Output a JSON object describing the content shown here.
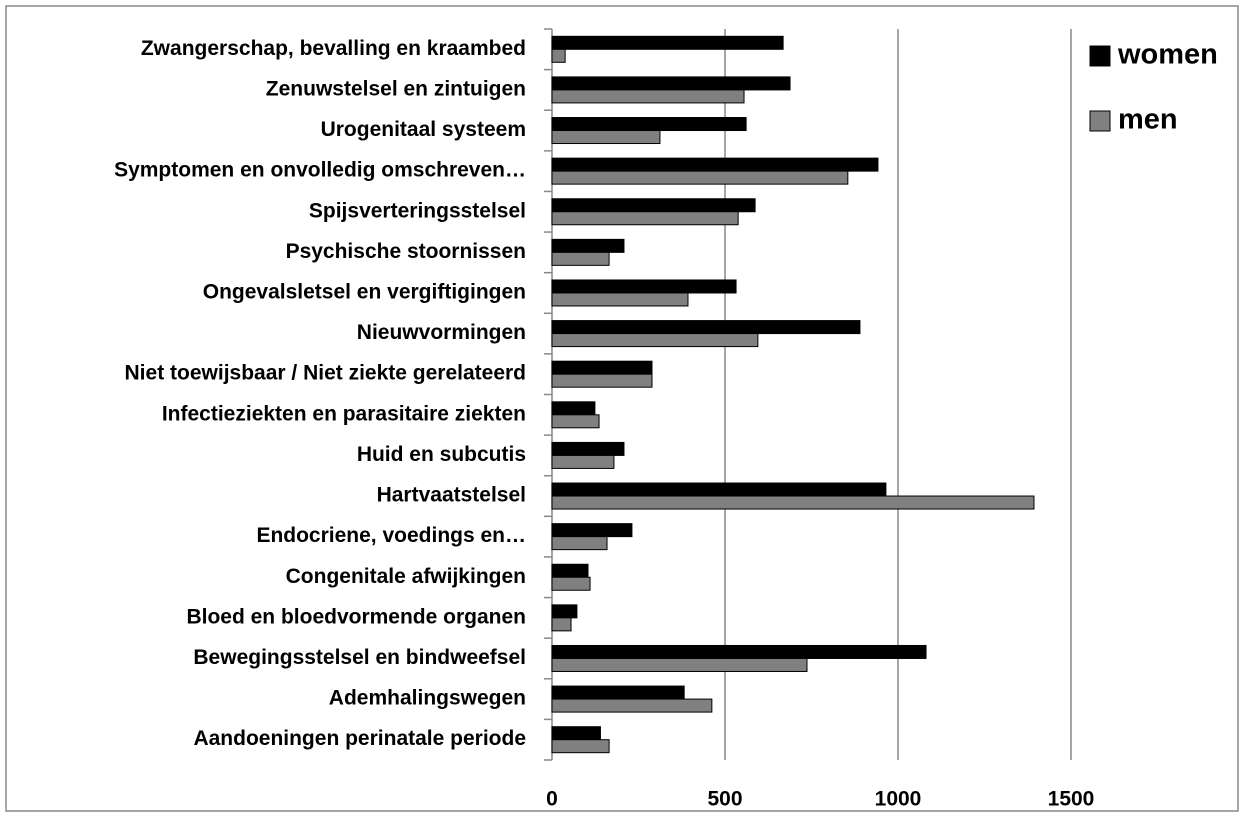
{
  "chart_data": {
    "type": "barh",
    "categories": [
      "Zwangerschap, bevalling en kraambed",
      "Zenuwstelsel en zintuigen",
      "Urogenitaal systeem",
      "Symptomen en onvolledig omschreven…",
      "Spijsverteringsstelsel",
      "Psychische stoornissen",
      "Ongevalsletsel en vergiftigingen",
      "Nieuwvormingen",
      "Niet toewijsbaar / Niet ziekte gerelateerd",
      "Infectieziekten en parasitaire ziekten",
      "Huid en subcutis",
      "Hartvaatstelsel",
      "Endocriene, voedings en…",
      "Congenitale afwijkingen",
      "Bloed en bloedvormende organen",
      "Bewegingsstelsel en bindweefsel",
      "Ademhalingswegen",
      "Aandoeningen perinatale periode"
    ],
    "series": [
      {
        "name": "women",
        "color": "#000000",
        "values": [
          668,
          688,
          561,
          942,
          587,
          208,
          532,
          890,
          289,
          124,
          208,
          965,
          231,
          104,
          72,
          1081,
          382,
          140
        ]
      },
      {
        "name": "men",
        "color": "#808080",
        "values": [
          38,
          555,
          312,
          855,
          538,
          165,
          393,
          595,
          289,
          136,
          179,
          1393,
          159,
          110,
          55,
          737,
          462,
          165
        ]
      }
    ],
    "xlim": [
      0,
      1500
    ],
    "xticks": [
      0,
      500,
      1000,
      1500
    ],
    "grid": true,
    "legend": "right"
  }
}
